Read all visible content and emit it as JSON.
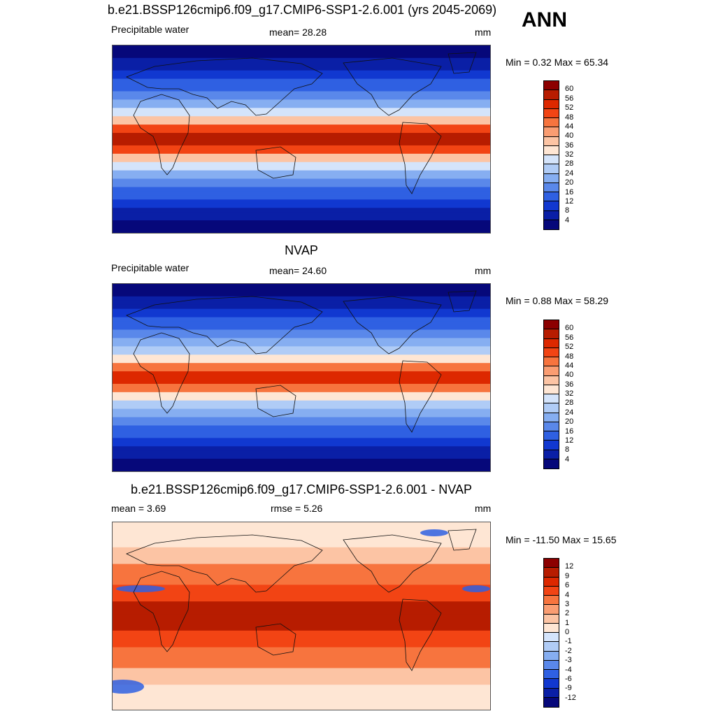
{
  "header": {
    "title": "b.e21.BSSP126cmip6.f09_g17.CMIP6-SSP1-2.6.001 (yrs 2045-2069)",
    "season": "ANN"
  },
  "panels": [
    {
      "title": "",
      "left_label": "Precipitable water",
      "center_label": "mean=  28.28",
      "units": "mm",
      "minmax": "Min =   0.32 Max =  65.34",
      "colorbar": {
        "ticks": [
          "60",
          "56",
          "52",
          "48",
          "44",
          "40",
          "36",
          "32",
          "28",
          "24",
          "20",
          "16",
          "12",
          "8",
          "4"
        ],
        "colors": [
          "#8c0000",
          "#b71c00",
          "#dd2800",
          "#f24414",
          "#f7743e",
          "#fa9d72",
          "#fcc4a4",
          "#fee6d4",
          "#d4e4fb",
          "#b0ccf6",
          "#86aef1",
          "#5a88ea",
          "#2f60e2",
          "#1138d0",
          "#0a1fa6",
          "#06087a"
        ]
      }
    },
    {
      "title": "NVAP",
      "left_label": "Precipitable water",
      "center_label": "mean=  24.60",
      "units": "mm",
      "minmax": "Min =   0.88 Max =  58.29",
      "colorbar": {
        "ticks": [
          "60",
          "56",
          "52",
          "48",
          "44",
          "40",
          "36",
          "32",
          "28",
          "24",
          "20",
          "16",
          "12",
          "8",
          "4"
        ],
        "colors": [
          "#8c0000",
          "#b71c00",
          "#dd2800",
          "#f24414",
          "#f7743e",
          "#fa9d72",
          "#fcc4a4",
          "#fee6d4",
          "#d4e4fb",
          "#b0ccf6",
          "#86aef1",
          "#5a88ea",
          "#2f60e2",
          "#1138d0",
          "#0a1fa6",
          "#06087a"
        ]
      }
    },
    {
      "title": "b.e21.BSSP126cmip6.f09_g17.CMIP6-SSP1-2.6.001 - NVAP",
      "left_label": "mean =   3.69",
      "center_label": "rmse =   5.26",
      "units": "mm",
      "minmax": "Min = -11.50 Max =  15.65",
      "colorbar": {
        "ticks": [
          "12",
          "9",
          "6",
          "4",
          "3",
          "2",
          "1",
          "0",
          "-1",
          "-2",
          "-3",
          "-4",
          "-6",
          "-9",
          "-12"
        ],
        "colors": [
          "#8c0000",
          "#b71c00",
          "#dd2800",
          "#f24414",
          "#f7743e",
          "#fa9d72",
          "#fcc4a4",
          "#fee6d4",
          "#d4e4fb",
          "#b0ccf6",
          "#86aef1",
          "#5a88ea",
          "#2f60e2",
          "#1138d0",
          "#0a1fa6",
          "#06087a"
        ]
      }
    }
  ],
  "chart_data": [
    {
      "type": "heatmap",
      "title": "b.e21.BSSP126cmip6.f09_g17.CMIP6-SSP1-2.6.001 (yrs 2045-2069)",
      "variable": "Precipitable water",
      "units": "mm",
      "mean": 28.28,
      "min": 0.32,
      "max": 65.34,
      "levels": [
        4,
        8,
        12,
        16,
        20,
        24,
        28,
        32,
        36,
        40,
        44,
        48,
        52,
        56,
        60
      ],
      "projection": "global cylindrical map with coastlines"
    },
    {
      "type": "heatmap",
      "title": "NVAP",
      "variable": "Precipitable water",
      "units": "mm",
      "mean": 24.6,
      "min": 0.88,
      "max": 58.29,
      "levels": [
        4,
        8,
        12,
        16,
        20,
        24,
        28,
        32,
        36,
        40,
        44,
        48,
        52,
        56,
        60
      ],
      "projection": "global cylindrical map with coastlines"
    },
    {
      "type": "heatmap",
      "title": "b.e21.BSSP126cmip6.f09_g17.CMIP6-SSP1-2.6.001 - NVAP",
      "units": "mm",
      "mean": 3.69,
      "rmse": 5.26,
      "min": -11.5,
      "max": 15.65,
      "levels": [
        -12,
        -9,
        -6,
        -4,
        -3,
        -2,
        -1,
        0,
        1,
        2,
        3,
        4,
        6,
        9,
        12
      ],
      "projection": "global cylindrical map with coastlines"
    }
  ]
}
